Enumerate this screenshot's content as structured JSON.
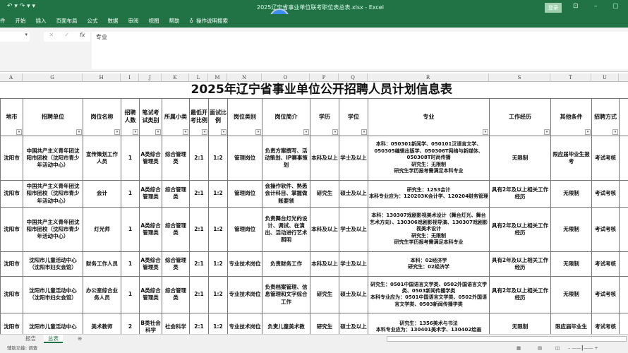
{
  "window": {
    "title": "2025辽宁省事业单位联考职位表总表.xlsx - Excel",
    "timer": "00:09",
    "login": "登录"
  },
  "menu": [
    "件",
    "开始",
    "插入",
    "页面布局",
    "公式",
    "数据",
    "审阅",
    "视图",
    "帮助",
    "操作说明搜索"
  ],
  "formula_bar": {
    "fx": "fx",
    "content": "专业"
  },
  "columns": [
    "A",
    "G",
    "H",
    "I",
    "J",
    "K",
    "L",
    "M",
    "N",
    "O",
    "P",
    "Q",
    "R",
    "S",
    "T",
    "U"
  ],
  "sheet_title": "2025年辽宁省事业单位公开招聘人员计划信息表",
  "headers": [
    "地市",
    "招聘单位",
    "岗位名称",
    "招聘人数",
    "笔试考试类别",
    "所属小类",
    "最低开考比例",
    "面试比例",
    "岗位类别",
    "岗位简介",
    "学历",
    "学位",
    "专业",
    "工作经历",
    "其他条件",
    "招聘方式"
  ],
  "rows": [
    [
      "沈阳市",
      "中国共产主义青年团沈阳市团校（沈阳市青少年活动中心）",
      "宣传策划工作人员",
      "1",
      "A类综合管理类",
      "综合管理类",
      "2:1",
      "1:2",
      "管理岗位",
      "负责方案撰写、活动策划、IP赛事策划",
      "本科及以上",
      "学士及以上",
      "本科：050301新闻学、050101汉语言文学、050305编辑出版学、050306T网络与新媒体、050308T时尚传播\n研究生：无限制\n研究生学历报考需满足本科专业",
      "无限制",
      "限应届毕业生报考",
      "考试考核"
    ],
    [
      "沈阳市",
      "中国共产主义青年团沈阳市团校（沈阳市青少年活动中心）",
      "会计",
      "1",
      "A类综合管理类",
      "综合管理类",
      "2:1",
      "1:2",
      "管理岗位",
      "会操作软件、熟悉会计科目、掌握做账要领",
      "研究生",
      "硕士及以上",
      "研究生：1253会计\n本科专业应为：120203K会计学、120204财务管理",
      "具有2年及以上相关工作经历",
      "无限制",
      "考试考核"
    ],
    [
      "沈阳市",
      "中国共产主义青年团沈阳市团校（沈阳市青少年活动中心）",
      "灯光师",
      "1",
      "A类综合管理类",
      "综合管理类",
      "2:1",
      "1:2",
      "管理岗位",
      "负责舞台灯光的设计、调试、在演出、活动进行艺术照明",
      "本科及以上",
      "学士及以上",
      "本科：130307戏剧影视美术设计（舞台灯光、舞台艺术方向）、130306戏剧影视导演、130307戏剧影视美术设计\n研究生：无限制\n研究生学历报考需满足本科专业",
      "具有2年及以上相关工作经历",
      "无限制",
      "考试考核"
    ],
    [
      "沈阳市",
      "沈阳市儿童活动中心（沈阳市妇女会馆）",
      "财务工作人员",
      "1",
      "A类综合管理类",
      "综合管理类",
      "2:1",
      "1:2",
      "专业技术岗位",
      "负责财务工作",
      "本科及以上",
      "学士及以上",
      "本科：02经济学\n研究生：02经济学",
      "具有2年及以上相关工作经历",
      "无限制",
      "考试考核"
    ],
    [
      "沈阳市",
      "沈阳市儿童活动中心（沈阳市妇女会馆）",
      "办公室综合业务人员",
      "1",
      "A类综合管理类",
      "综合管理类",
      "2:1",
      "1:2",
      "专业技术岗位",
      "负责档案管理、信息管理和文字综合工作",
      "研究生",
      "硕士及以上",
      "研究生：0501中国语言文学类、0502外国语言文学类、0503新闻传播学类\n本科专业应为：0501中国语言文学类、0502外国语言文学类、0503新闻传播学类",
      "具有2年及以上相关工作经历",
      "无限制",
      "考试考核"
    ],
    [
      "沈阳市",
      "沈阳市儿童活动中心",
      "美术教师",
      "2",
      "B类社会科学",
      "社会科学",
      "2:1",
      "1:2",
      "专业技术岗位",
      "负责儿童美术教",
      "研究生",
      "硕士及以上",
      "研究生：1356美术与书法\n本科专业应为：130401美术学、130402绘画",
      "无限制",
      "限应届毕业生",
      "考试考核"
    ]
  ],
  "sheet_tabs": [
    "报告",
    "总表"
  ],
  "active_tab": "总表",
  "status": "辅助功能: 调查"
}
